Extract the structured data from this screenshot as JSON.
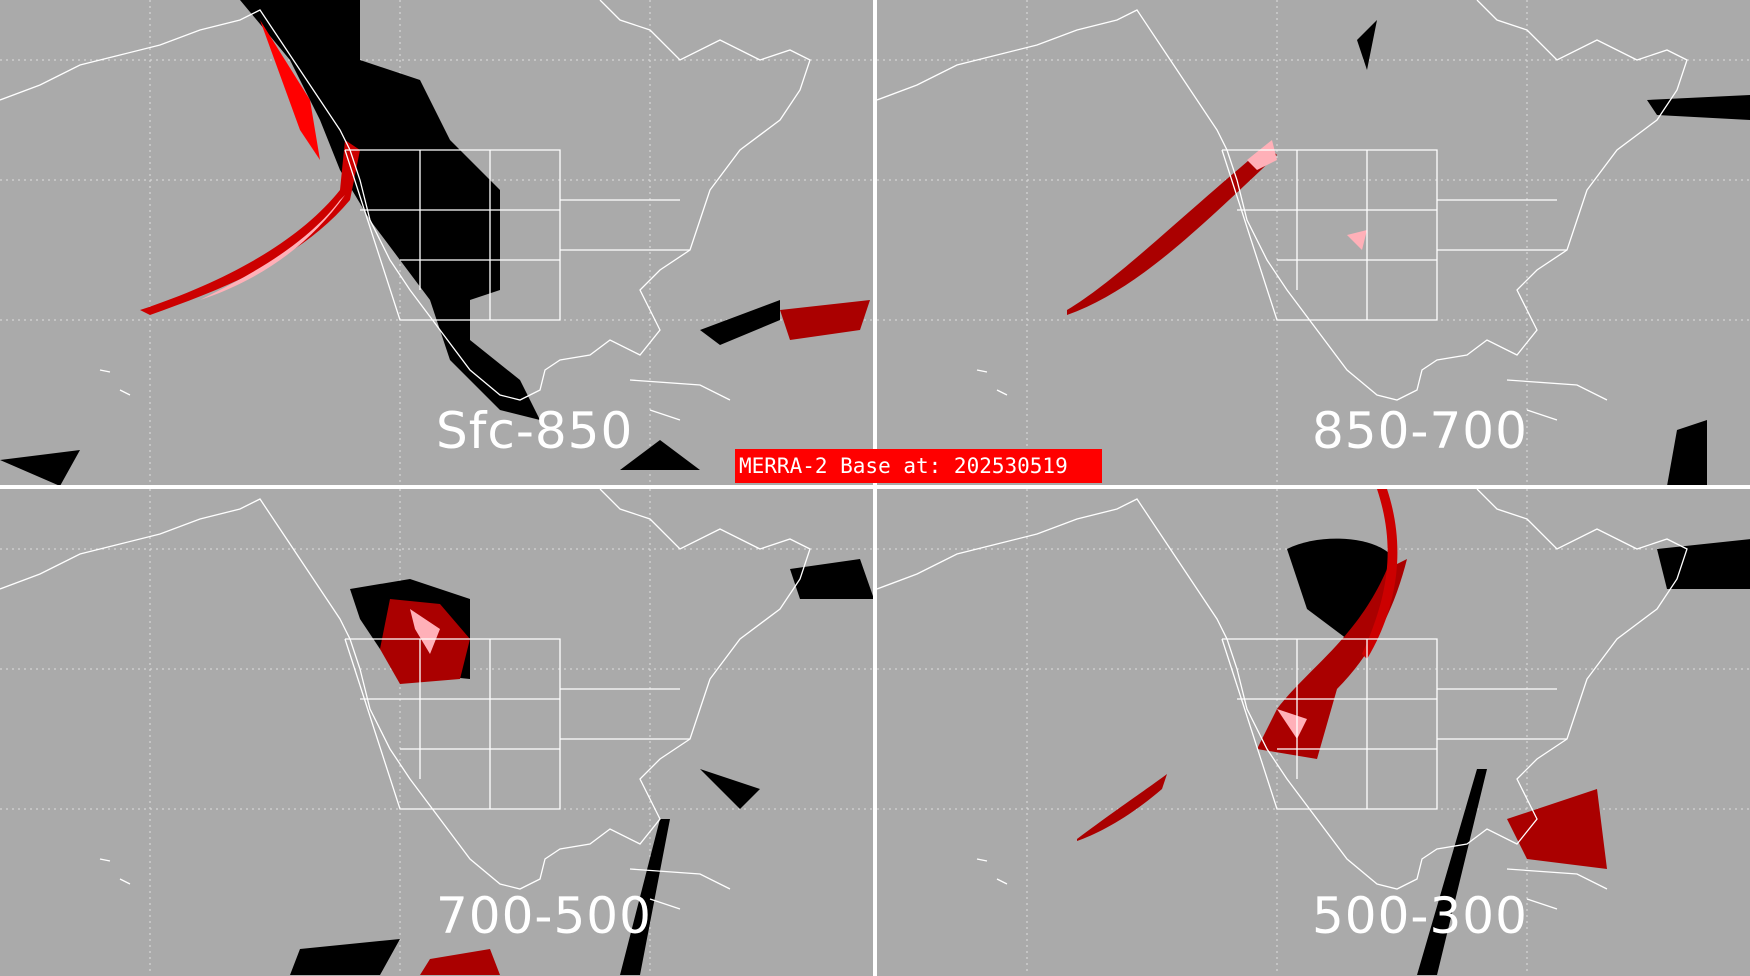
{
  "title": "MERRA-2 Base at: 202530519",
  "panels": [
    {
      "label": "Sfc-850"
    },
    {
      "label": "850-700"
    },
    {
      "label": "700-500"
    },
    {
      "label": "500-300"
    }
  ],
  "colors": {
    "background": "#aaaaaa",
    "coastline": "#ffffff",
    "high": "#000000",
    "mid": "#aa0000",
    "low": "#ff0000",
    "light": "#ffb0b8",
    "banner": "#ff0000"
  }
}
